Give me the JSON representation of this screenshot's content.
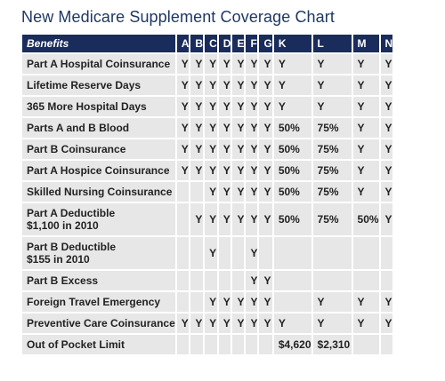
{
  "title": "New Medicare Supplement Coverage Chart",
  "columns": [
    "Benefits",
    "A",
    "B",
    "C",
    "D",
    "E",
    "F",
    "G",
    "K",
    "L",
    "M",
    "N"
  ],
  "rows": [
    {
      "benefit": "Part A Hospital Coinsurance",
      "sub": "",
      "cells": [
        "Y",
        "Y",
        "Y",
        "Y",
        "Y",
        "Y",
        "Y",
        "Y",
        "Y",
        "Y",
        "Y"
      ]
    },
    {
      "benefit": "Lifetime Reserve Days",
      "sub": "",
      "cells": [
        "Y",
        "Y",
        "Y",
        "Y",
        "Y",
        "Y",
        "Y",
        "Y",
        "Y",
        "Y",
        "Y"
      ]
    },
    {
      "benefit": "365 More Hospital Days",
      "sub": "",
      "cells": [
        "Y",
        "Y",
        "Y",
        "Y",
        "Y",
        "Y",
        "Y",
        "Y",
        "Y",
        "Y",
        "Y"
      ]
    },
    {
      "benefit": "Parts A and B Blood",
      "sub": "",
      "cells": [
        "Y",
        "Y",
        "Y",
        "Y",
        "Y",
        "Y",
        "Y",
        "50%",
        "75%",
        "Y",
        "Y"
      ]
    },
    {
      "benefit": "Part B Coinsurance",
      "sub": "",
      "cells": [
        "Y",
        "Y",
        "Y",
        "Y",
        "Y",
        "Y",
        "Y",
        "50%",
        "75%",
        "Y",
        "Y"
      ]
    },
    {
      "benefit": "Part A Hospice Coinsurance",
      "sub": "",
      "cells": [
        "Y",
        "Y",
        "Y",
        "Y",
        "Y",
        "Y",
        "Y",
        "50%",
        "75%",
        "Y",
        "Y"
      ]
    },
    {
      "benefit": "Skilled Nursing Coinsurance",
      "sub": "",
      "cells": [
        "",
        "",
        "Y",
        "Y",
        "Y",
        "Y",
        "Y",
        "50%",
        "75%",
        "Y",
        "Y"
      ]
    },
    {
      "benefit": "Part A Deductible",
      "sub": "$1,100 in 2010",
      "cells": [
        "",
        "Y",
        "Y",
        "Y",
        "Y",
        "Y",
        "Y",
        "50%",
        "75%",
        "50%",
        "Y"
      ]
    },
    {
      "benefit": "Part B Deductible",
      "sub": "$155 in 2010",
      "cells": [
        "",
        "",
        "Y",
        "",
        "",
        "Y",
        "",
        "",
        "",
        "",
        ""
      ]
    },
    {
      "benefit": "Part B Excess",
      "sub": "",
      "cells": [
        "",
        "",
        "",
        "",
        "",
        "Y",
        "Y",
        "",
        "",
        "",
        ""
      ]
    },
    {
      "benefit": "Foreign Travel Emergency",
      "sub": "",
      "cells": [
        "",
        "",
        "Y",
        "Y",
        "Y",
        "Y",
        "Y",
        "",
        "Y",
        "Y",
        "Y"
      ]
    },
    {
      "benefit": "Preventive Care Coinsurance",
      "sub": "",
      "cells": [
        "Y",
        "Y",
        "Y",
        "Y",
        "Y",
        "Y",
        "Y",
        "Y",
        "Y",
        "Y",
        "Y"
      ]
    },
    {
      "benefit": "Out of Pocket Limit",
      "sub": "",
      "cells": [
        "",
        "",
        "",
        "",
        "",
        "",
        "",
        "$4,620",
        "$2,310",
        "",
        ""
      ]
    }
  ],
  "colors": {
    "title": "#1f3864",
    "header_bg": "#1a2c5b",
    "header_text": "#ffffff",
    "cell_bg": "#e7e7e7",
    "cell_text": "#222222"
  }
}
